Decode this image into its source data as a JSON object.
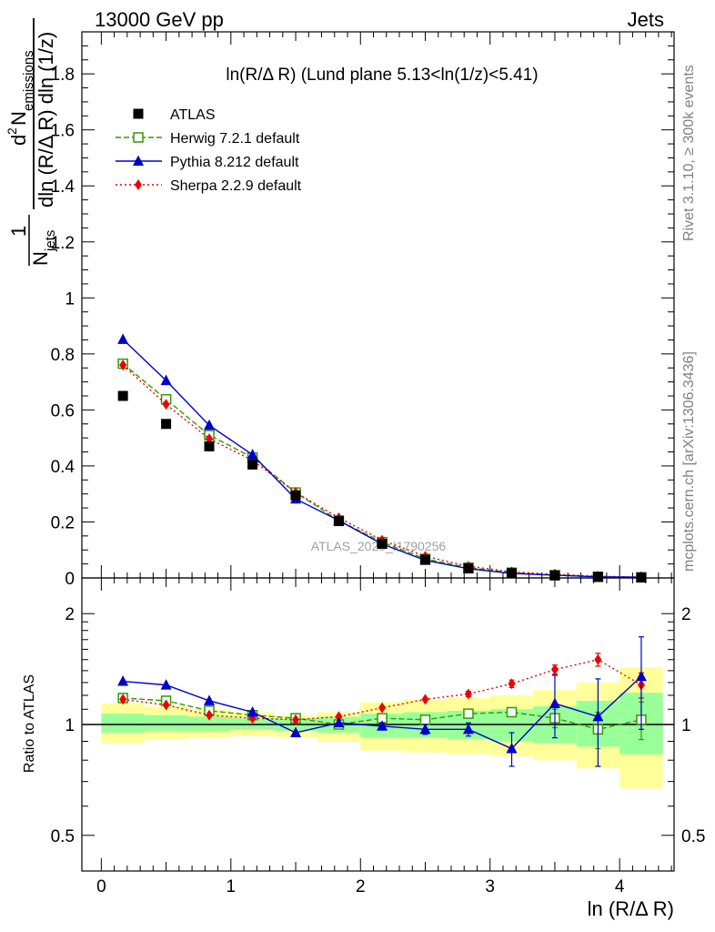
{
  "header": {
    "left": "13000 GeV pp",
    "right": "Jets"
  },
  "side_labels": {
    "rivet": "Rivet 3.1.10, ≥ 300k events",
    "mcplots": "mcplots.cern.ch [arXiv:1306.3436]"
  },
  "plot_title": "ln(R/Δ R) (Lund plane 5.13<ln(1/z)<5.41)",
  "watermark": "ATLAS_2020_I1790256",
  "colors": {
    "atlas": "#000000",
    "herwig": "#339900",
    "pythia": "#0000cc",
    "sherpa": "#ee0000",
    "band_outer": "#ffff99",
    "band_inner": "#99ff99"
  },
  "chart_data": [
    {
      "type": "scatter",
      "panel": "main",
      "ylabel": "1/N_jets dN_emissions^2 / (dln(R/ΔR) dln(1/z))",
      "ylabel_parts": {
        "frac_num": "1",
        "frac_den_pre": "N",
        "frac_den_sub": "jets",
        "num_sup": "2",
        "num_main": "d",
        "num_N": "N",
        "num_sub": "emissions",
        "den_text": "dln (R/Δ R) dln (1/z)"
      },
      "xlim": [
        -0.15,
        4.42
      ],
      "ylim": [
        0,
        1.95
      ],
      "yticks": [
        {
          "v": 0,
          "label": "0"
        },
        {
          "v": 0.2,
          "label": "0.2"
        },
        {
          "v": 0.4,
          "label": "0.4"
        },
        {
          "v": 0.6,
          "label": "0.6"
        },
        {
          "v": 0.8,
          "label": "0.8"
        },
        {
          "v": 1.0,
          "label": "1"
        },
        {
          "v": 1.2,
          "label": "1.2"
        },
        {
          "v": 1.4,
          "label": "1.4"
        },
        {
          "v": 1.6,
          "label": "1.6"
        },
        {
          "v": 1.8,
          "label": "1.8"
        }
      ],
      "x": [
        0.167,
        0.5,
        0.833,
        1.167,
        1.5,
        1.833,
        2.167,
        2.5,
        2.833,
        3.167,
        3.5,
        3.833,
        4.167
      ],
      "bin_edges": [
        0,
        0.333,
        0.667,
        1.0,
        1.333,
        1.667,
        2.0,
        2.333,
        2.667,
        3.0,
        3.333,
        3.667,
        4.0,
        4.333
      ],
      "legend": {
        "placement": "top-left",
        "entries": [
          {
            "key": "atlas",
            "label": "ATLAS"
          },
          {
            "key": "herwig",
            "label": "Herwig 7.2.1 default"
          },
          {
            "key": "pythia",
            "label": "Pythia 8.212 default"
          },
          {
            "key": "sherpa",
            "label": "Sherpa 2.2.9 default"
          }
        ]
      },
      "series": [
        {
          "key": "atlas",
          "name": "ATLAS",
          "style": "filled-square",
          "values": [
            0.65,
            0.55,
            0.47,
            0.405,
            0.295,
            0.203,
            0.122,
            0.065,
            0.034,
            0.017,
            0.009,
            0.004,
            0.002
          ]
        },
        {
          "key": "herwig",
          "name": "Herwig 7.2.1 default",
          "style": "open-square-dashed",
          "values": [
            0.765,
            0.638,
            0.51,
            0.43,
            0.305,
            0.205,
            0.128,
            0.068,
            0.037,
            0.019,
            0.01,
            0.004,
            0.002
          ]
        },
        {
          "key": "pythia",
          "name": "Pythia 8.212 default",
          "style": "triangle-solid",
          "values": [
            0.852,
            0.705,
            0.545,
            0.44,
            0.282,
            0.205,
            0.121,
            0.063,
            0.033,
            0.016,
            0.01,
            0.004,
            0.003
          ]
        },
        {
          "key": "sherpa",
          "name": "Sherpa 2.2.9 default",
          "style": "diamond-dotted",
          "values": [
            0.76,
            0.62,
            0.497,
            0.42,
            0.305,
            0.215,
            0.135,
            0.077,
            0.042,
            0.022,
            0.013,
            0.006,
            0.003
          ]
        }
      ]
    },
    {
      "type": "scatter",
      "panel": "ratio",
      "ylabel": "Ratio to ATLAS",
      "xlabel": "ln (R/Δ R)",
      "xlim": [
        -0.15,
        4.42
      ],
      "ylim": [
        0.4,
        2.5
      ],
      "log_y": true,
      "yticks_left": [
        {
          "v": 0.5,
          "label": "0.5"
        },
        {
          "v": 1,
          "label": "1"
        },
        {
          "v": 2,
          "label": "2"
        }
      ],
      "yticks_right": [
        {
          "v": 0.5,
          "label": "0.5"
        },
        {
          "v": 1,
          "label": "1"
        },
        {
          "v": 2,
          "label": "2"
        }
      ],
      "xticks": [
        {
          "v": 0,
          "label": "0"
        },
        {
          "v": 1,
          "label": "1"
        },
        {
          "v": 2,
          "label": "2"
        },
        {
          "v": 3,
          "label": "3"
        },
        {
          "v": 4,
          "label": "4"
        }
      ],
      "x": [
        0.167,
        0.5,
        0.833,
        1.167,
        1.5,
        1.833,
        2.167,
        2.5,
        2.833,
        3.167,
        3.5,
        3.833,
        4.167
      ],
      "bin_edges": [
        0,
        0.333,
        0.667,
        1.0,
        1.333,
        1.667,
        2.0,
        2.333,
        2.667,
        3.0,
        3.333,
        3.667,
        4.0,
        4.333
      ],
      "band_outer": [
        [
          0.89,
          1.14
        ],
        [
          0.91,
          1.12
        ],
        [
          0.92,
          1.1
        ],
        [
          0.93,
          1.08
        ],
        [
          0.92,
          1.06
        ],
        [
          0.9,
          1.08
        ],
        [
          0.85,
          1.15
        ],
        [
          0.84,
          1.17
        ],
        [
          0.83,
          1.18
        ],
        [
          0.82,
          1.2
        ],
        [
          0.8,
          1.24
        ],
        [
          0.76,
          1.3
        ],
        [
          0.67,
          1.43
        ]
      ],
      "band_inner": [
        [
          0.95,
          1.07
        ],
        [
          0.96,
          1.06
        ],
        [
          0.96,
          1.05
        ],
        [
          0.97,
          1.04
        ],
        [
          0.96,
          1.04
        ],
        [
          0.95,
          1.05
        ],
        [
          0.92,
          1.07
        ],
        [
          0.92,
          1.08
        ],
        [
          0.91,
          1.09
        ],
        [
          0.9,
          1.1
        ],
        [
          0.89,
          1.12
        ],
        [
          0.87,
          1.16
        ],
        [
          0.83,
          1.22
        ]
      ],
      "series": [
        {
          "key": "herwig",
          "name": "Herwig 7.2.1 default",
          "style": "open-square-dashed",
          "values": [
            1.18,
            1.16,
            1.09,
            1.06,
            1.04,
            1.0,
            1.04,
            1.03,
            1.07,
            1.08,
            1.04,
            0.97,
            1.03
          ],
          "err": [
            0.01,
            0.01,
            0.01,
            0.01,
            0.01,
            0.01,
            0.01,
            0.02,
            0.02,
            0.03,
            0.06,
            0.11,
            0.12
          ]
        },
        {
          "key": "pythia",
          "name": "Pythia 8.212 default",
          "style": "triangle-solid",
          "values": [
            1.31,
            1.28,
            1.16,
            1.08,
            0.95,
            1.01,
            0.99,
            0.97,
            0.97,
            0.86,
            1.14,
            1.05,
            1.35
          ],
          "err": [
            0.01,
            0.01,
            0.01,
            0.01,
            0.01,
            0.01,
            0.02,
            0.03,
            0.04,
            0.09,
            0.22,
            0.28,
            0.38
          ]
        },
        {
          "key": "sherpa",
          "name": "Sherpa 2.2.9 default",
          "style": "diamond-dotted",
          "values": [
            1.17,
            1.13,
            1.06,
            1.04,
            1.03,
            1.05,
            1.11,
            1.17,
            1.21,
            1.29,
            1.41,
            1.5,
            1.28
          ],
          "err": [
            0.01,
            0.01,
            0.01,
            0.01,
            0.01,
            0.01,
            0.01,
            0.01,
            0.02,
            0.03,
            0.04,
            0.06,
            0.1
          ]
        }
      ]
    }
  ]
}
